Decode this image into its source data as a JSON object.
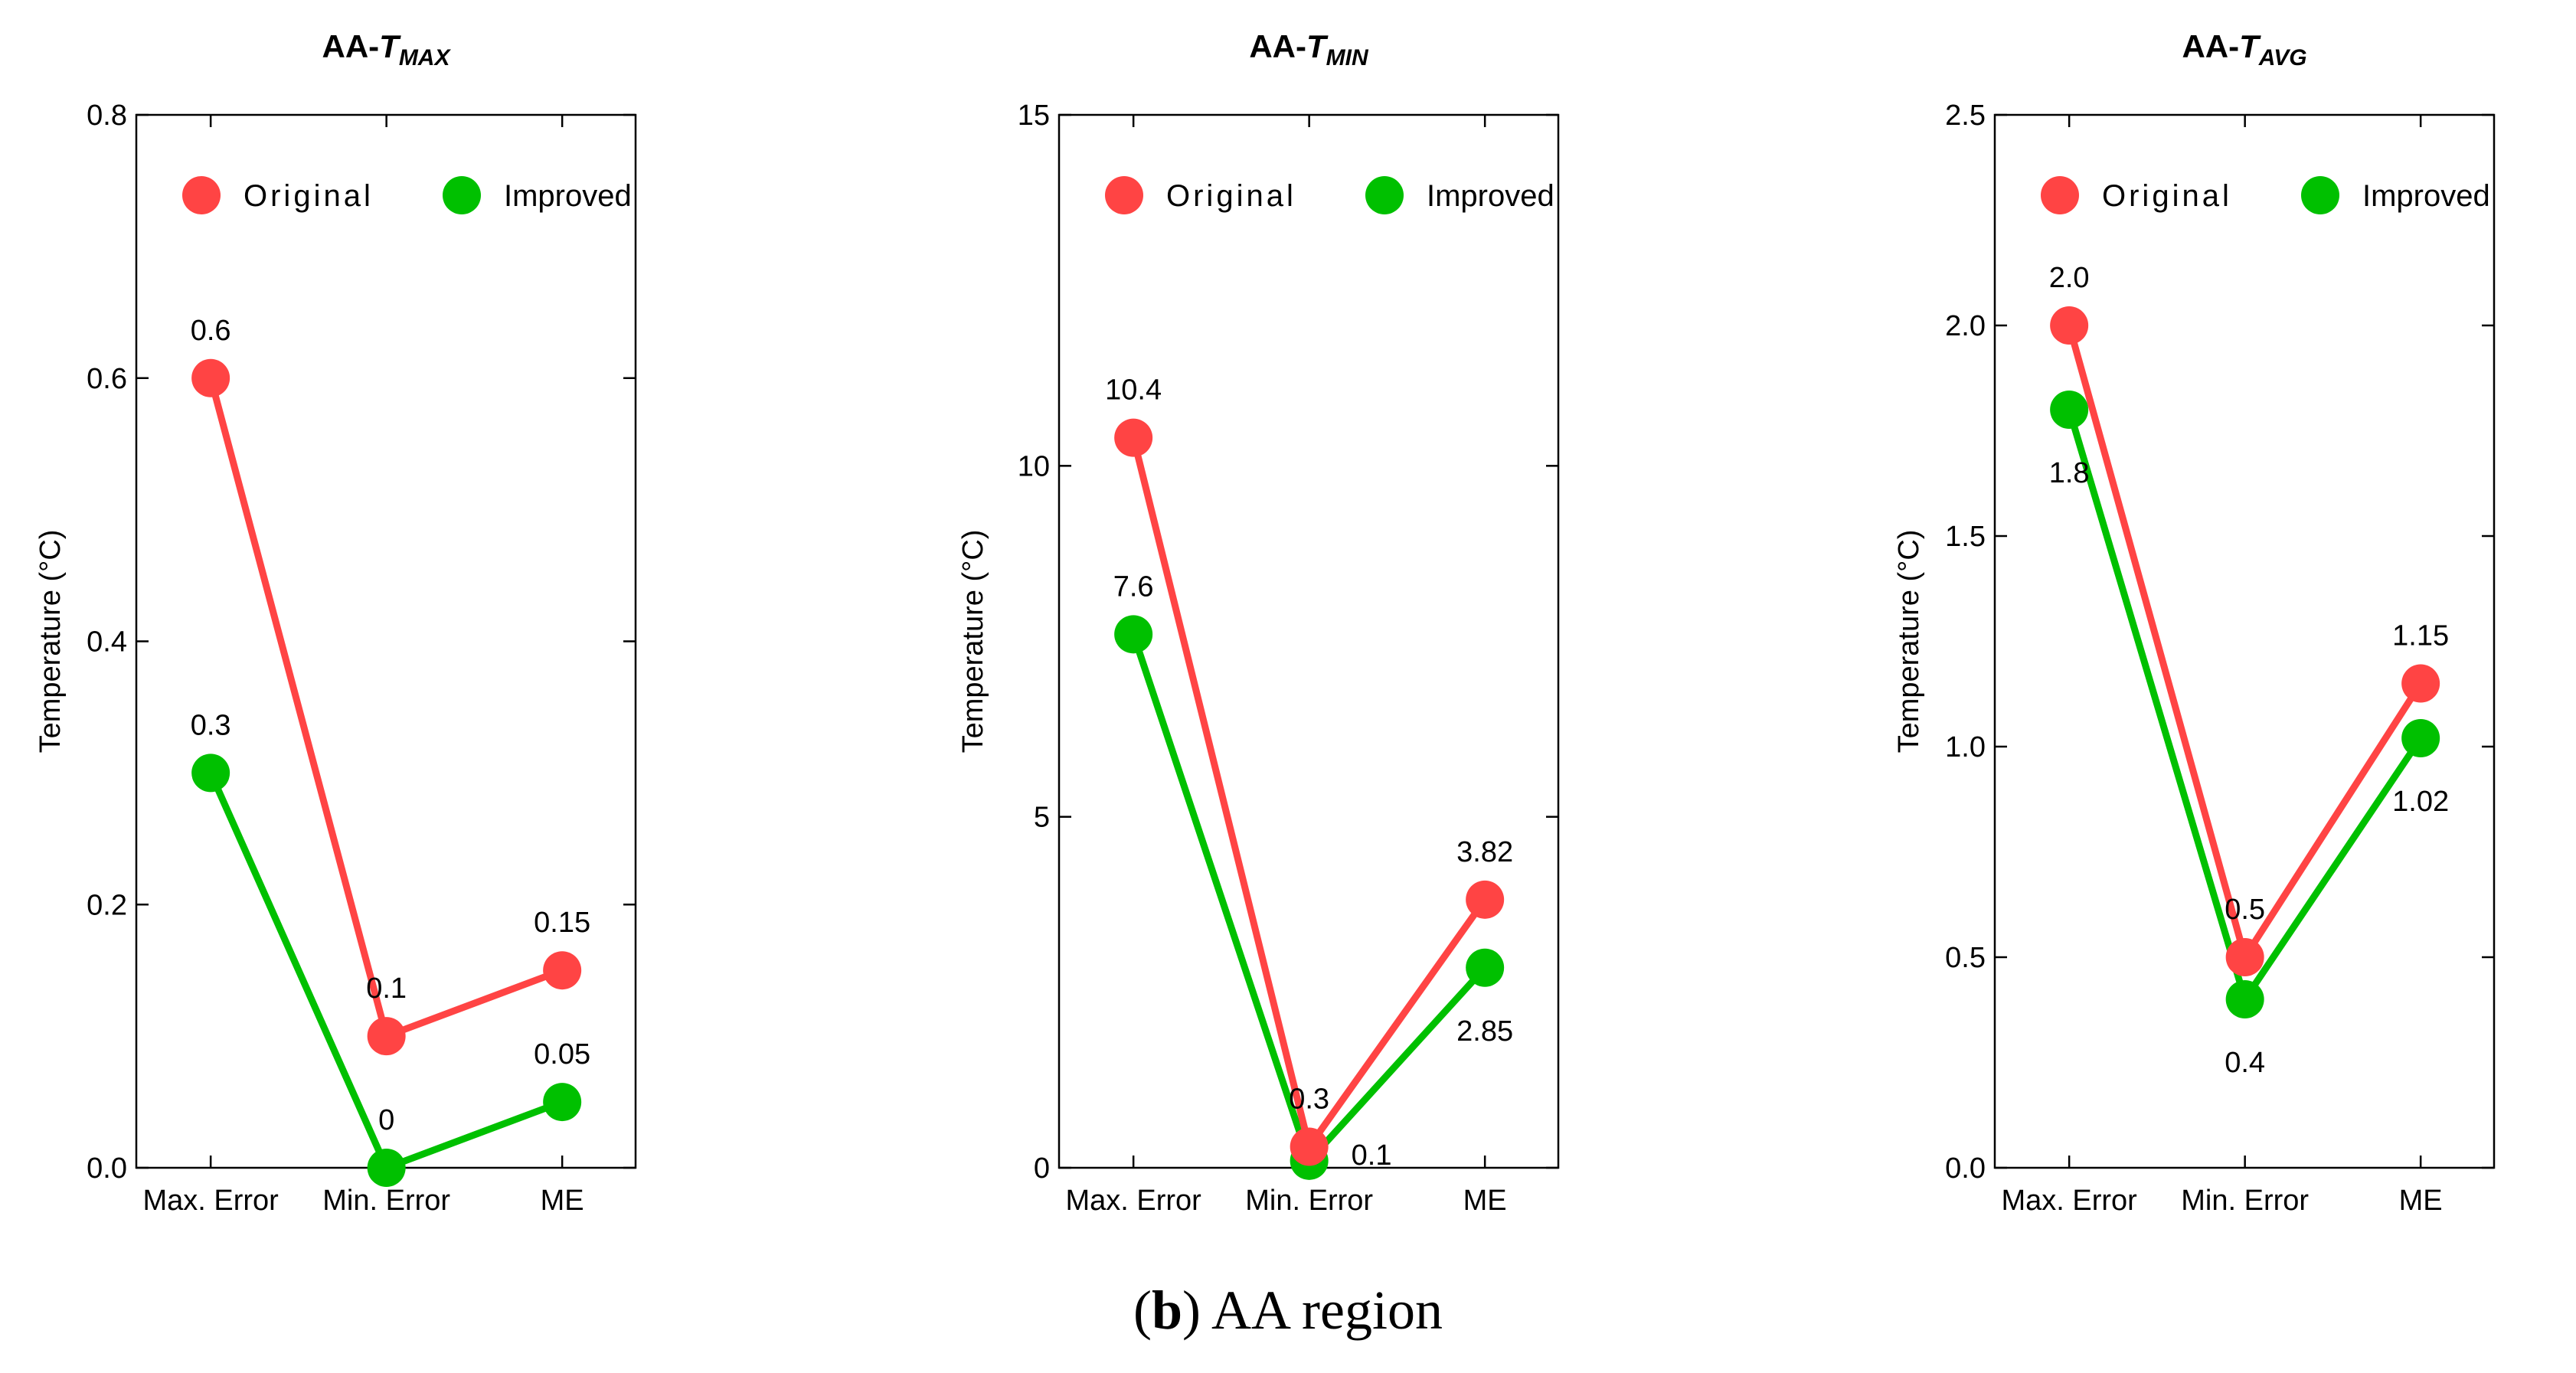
{
  "chart_data": [
    {
      "type": "line",
      "title_main": "AA-",
      "title_var": "T",
      "title_sub": "MAX",
      "ylabel": "Temperature (°C)",
      "categories": [
        "Max. Error",
        "Min. Error",
        "ME"
      ],
      "ylim": [
        0,
        0.8
      ],
      "yticks": [
        "0.0",
        "0.2",
        "0.4",
        "0.6",
        "0.8"
      ],
      "ytick_values": [
        0,
        0.2,
        0.4,
        0.6,
        0.8
      ],
      "legend": [
        "Original",
        "Improved"
      ],
      "series": [
        {
          "name": "Original",
          "values": [
            0.6,
            0.1,
            0.15
          ],
          "labels": [
            "0.6",
            "0.1",
            "0.15"
          ],
          "label_pos": [
            "above",
            "above",
            "above"
          ]
        },
        {
          "name": "Improved",
          "values": [
            0.3,
            0,
            0.05
          ],
          "labels": [
            "0.3",
            "0",
            "0.05"
          ],
          "label_pos": [
            "above",
            "above",
            "above"
          ]
        }
      ]
    },
    {
      "type": "line",
      "title_main": "AA-",
      "title_var": "T",
      "title_sub": "MIN",
      "ylabel": "Temperature (°C)",
      "categories": [
        "Max. Error",
        "Min. Error",
        "ME"
      ],
      "ylim": [
        0,
        15
      ],
      "yticks": [
        "0",
        "5",
        "10",
        "15"
      ],
      "ytick_values": [
        0,
        5,
        10,
        15
      ],
      "legend": [
        "Original",
        "Improved"
      ],
      "series": [
        {
          "name": "Original",
          "values": [
            10.4,
            0.3,
            3.82
          ],
          "labels": [
            "10.4",
            "0.3",
            "3.82"
          ],
          "label_pos": [
            "above",
            "above",
            "above"
          ]
        },
        {
          "name": "Improved",
          "values": [
            7.6,
            0.1,
            2.85
          ],
          "labels": [
            "7.6",
            "0.1",
            "2.85"
          ],
          "label_pos": [
            "above",
            "right",
            "below"
          ]
        }
      ]
    },
    {
      "type": "line",
      "title_main": "AA-",
      "title_var": "T",
      "title_sub": "AVG",
      "ylabel": "Temperature (°C)",
      "categories": [
        "Max. Error",
        "Min. Error",
        "ME"
      ],
      "ylim": [
        0,
        2.5
      ],
      "yticks": [
        "0.0",
        "0.5",
        "1.0",
        "1.5",
        "2.0",
        "2.5"
      ],
      "ytick_values": [
        0,
        0.5,
        1.0,
        1.5,
        2.0,
        2.5
      ],
      "legend": [
        "Original",
        "Improved"
      ],
      "series": [
        {
          "name": "Original",
          "values": [
            2.0,
            0.5,
            1.15
          ],
          "labels": [
            "2.0",
            "0.5",
            "1.15"
          ],
          "label_pos": [
            "above",
            "above",
            "above"
          ]
        },
        {
          "name": "Improved",
          "values": [
            1.8,
            0.4,
            1.02
          ],
          "labels": [
            "1.8",
            "0.4",
            "1.02"
          ],
          "label_pos": [
            "below",
            "below",
            "below"
          ]
        }
      ]
    }
  ],
  "colors": {
    "Original": "#ff4444",
    "Improved": "#00c000"
  },
  "caption": {
    "bold": "b",
    "text": "AA region"
  }
}
